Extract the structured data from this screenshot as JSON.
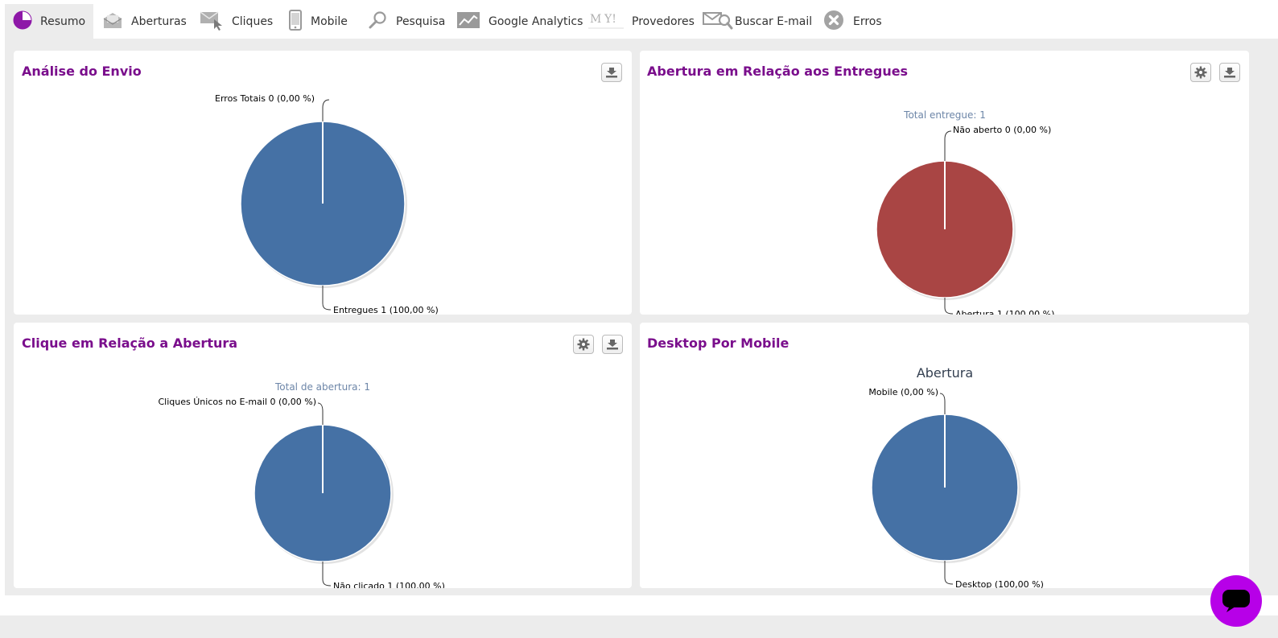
{
  "tabs": [
    {
      "label": "Resumo",
      "icon": "pie-chart-icon",
      "active": true
    },
    {
      "label": "Aberturas",
      "icon": "open-envelope-icon"
    },
    {
      "label": "Cliques",
      "icon": "click-envelope-icon"
    },
    {
      "label": "Mobile",
      "icon": "mobile-phone-icon"
    },
    {
      "label": "Pesquisa",
      "icon": "search-icon"
    },
    {
      "label": "Google Analytics",
      "icon": "analytics-chart-icon"
    },
    {
      "label": "Provedores",
      "icon": "providers-logo-icon"
    },
    {
      "label": "Buscar E-mail",
      "icon": "search-email-icon"
    },
    {
      "label": "Erros",
      "icon": "error-x-icon"
    }
  ],
  "colors": {
    "accent": "#7a0e8c",
    "blue_slice": "#4571a5",
    "red_slice": "#a94544",
    "subtitle": "#6d86a8",
    "chat_button": "#b700e8"
  },
  "panels": {
    "envio": {
      "title": "Análise do Envio"
    },
    "entregues": {
      "title": "Abertura em Relação aos Entregues"
    },
    "clique": {
      "title": "Clique em Relação a Abertura"
    },
    "desktop": {
      "title": "Desktop Por Mobile"
    }
  },
  "chart_data": [
    {
      "type": "pie",
      "title": "",
      "slices": [
        {
          "label": "Erros Totais",
          "value": 0,
          "percent": "0,00 %",
          "text": "Erros Totais 0 (0,00 %)"
        },
        {
          "label": "Entregues",
          "value": 1,
          "percent": "100,00 %",
          "text": "Entregues 1 (100,00 %)",
          "color": "#4571a5"
        }
      ]
    },
    {
      "type": "pie",
      "subtitle": "Total entregue: 1",
      "slices": [
        {
          "label": "Não aberto",
          "value": 0,
          "percent": "0,00 %",
          "text": "Não aberto 0 (0,00 %)"
        },
        {
          "label": "Abertura",
          "value": 1,
          "percent": "100,00 %",
          "text": "Abertura 1 (100,00 %)",
          "color": "#a94544"
        }
      ]
    },
    {
      "type": "pie",
      "subtitle": "Total de abertura: 1",
      "slices": [
        {
          "label": "Cliques Únicos no E-mail",
          "value": 0,
          "percent": "0,00 %",
          "text": "Cliques Únicos no E-mail 0 (0,00 %)"
        },
        {
          "label": "Não clicado",
          "value": 1,
          "percent": "100,00 %",
          "text": "Não clicado 1 (100,00 %)",
          "color": "#4571a5"
        }
      ]
    },
    {
      "type": "pie",
      "title": "Abertura",
      "slices": [
        {
          "label": "Mobile",
          "value": 0,
          "percent": "0,00 %",
          "text": "Mobile (0,00 %)"
        },
        {
          "label": "Desktop",
          "value": 100,
          "percent": "100,00 %",
          "text": "Desktop (100,00 %)",
          "color": "#4571a5"
        }
      ]
    }
  ]
}
